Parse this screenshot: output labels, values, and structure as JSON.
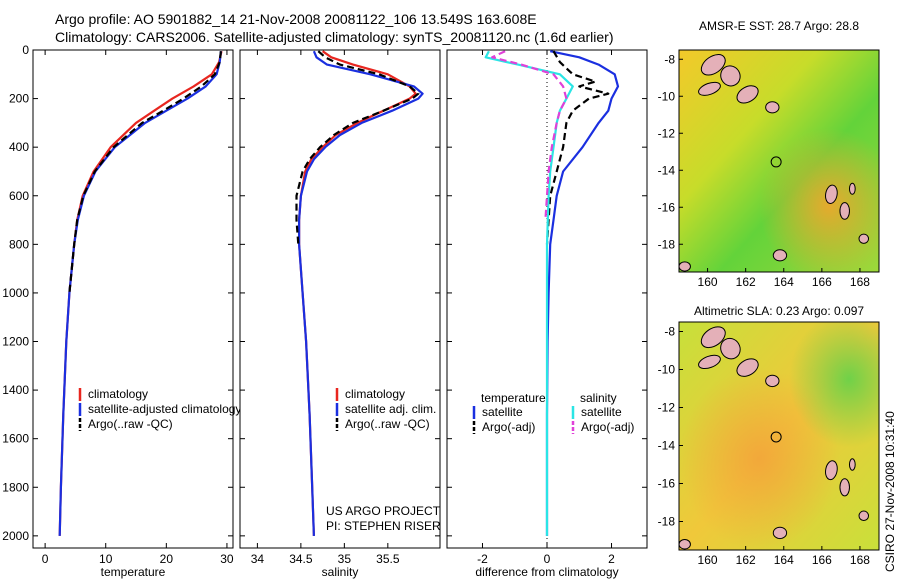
{
  "header": {
    "line1": "Argo profile: AO 5901882_14 21-Nov-2008 20081122_106 13.549S 163.608E",
    "line2": "Climatology: CARS2006. Satellite-adjusted climatology: synTS_20081120.nc (1.6d earlier)"
  },
  "footer_stamp": "CSIRO 27-Nov-2008 10:31:40",
  "colors": {
    "climatology": "#e8261f",
    "satellite": "#1a2fe0",
    "argo": "#000000",
    "satellite_salinity": "#2ae5e5",
    "argo_salinity": "#e040d8"
  },
  "chart_data": [
    {
      "type": "line",
      "panel": "temperature",
      "xlabel": "temperature",
      "ylabel": "",
      "xlim": [
        -2,
        31
      ],
      "ylim": [
        2050,
        0
      ],
      "x_ticks": [
        0,
        10,
        20,
        30
      ],
      "y_ticks": [
        0,
        200,
        400,
        600,
        800,
        1000,
        1200,
        1400,
        1600,
        1800,
        2000
      ],
      "legend": [
        "climatology",
        "satellite-adjusted climatology",
        "Argo(..raw -QC)"
      ],
      "legend_position": "lower-center",
      "series": [
        {
          "name": "climatology",
          "color_key": "climatology",
          "dash": "solid",
          "depth": [
            5,
            50,
            100,
            150,
            200,
            250,
            300,
            400,
            500,
            600,
            700,
            800,
            1000,
            1200,
            1500,
            1800,
            2000
          ],
          "values": [
            29.1,
            28.7,
            27.5,
            24.5,
            21.0,
            18.0,
            15.0,
            10.8,
            8.0,
            6.2,
            5.3,
            4.8,
            4.0,
            3.5,
            3.0,
            2.6,
            2.4
          ]
        },
        {
          "name": "satellite-adjusted climatology",
          "color_key": "satellite",
          "dash": "solid",
          "depth": [
            5,
            50,
            100,
            150,
            200,
            250,
            300,
            400,
            500,
            600,
            700,
            800,
            1000,
            1200,
            1500,
            1800,
            2000
          ],
          "values": [
            29.0,
            28.8,
            28.3,
            26.5,
            23.5,
            20.0,
            16.5,
            11.5,
            8.3,
            6.4,
            5.4,
            4.8,
            4.0,
            3.5,
            3.0,
            2.6,
            2.4
          ]
        },
        {
          "name": "Argo(..raw -QC)",
          "color_key": "argo",
          "dash": "dash",
          "depth": [
            5,
            50,
            100,
            150,
            200,
            250,
            300,
            400,
            500,
            600,
            700,
            800,
            1000
          ],
          "values": [
            29.0,
            28.8,
            28.0,
            25.8,
            22.8,
            19.5,
            16.0,
            11.3,
            8.2,
            6.3,
            5.3,
            4.8,
            4.0
          ]
        }
      ]
    },
    {
      "type": "line",
      "panel": "salinity",
      "xlabel": "salinity",
      "ylabel": "",
      "xlim": [
        33.8,
        36.1
      ],
      "ylim": [
        2050,
        0
      ],
      "x_ticks": [
        34,
        34.5,
        35,
        35.5
      ],
      "legend": [
        "climatology",
        "satellite adj. clim.",
        "Argo(..raw -QC)"
      ],
      "legend_position": "lower-right",
      "annotation_lines": [
        "US ARGO PROJECT",
        "PI: STEPHEN RISER"
      ],
      "series": [
        {
          "name": "climatology",
          "color_key": "climatology",
          "dash": "solid",
          "depth": [
            5,
            30,
            60,
            100,
            150,
            180,
            200,
            250,
            300,
            350,
            400,
            450,
            500,
            600,
            700,
            800,
            1000,
            1200,
            1500,
            1800,
            2000
          ],
          "values": [
            34.75,
            34.85,
            35.1,
            35.5,
            35.75,
            35.82,
            35.75,
            35.45,
            35.15,
            34.9,
            34.75,
            34.62,
            34.55,
            34.5,
            34.48,
            34.48,
            34.52,
            34.56,
            34.6,
            34.63,
            34.65
          ]
        },
        {
          "name": "satellite adj. clim.",
          "color_key": "satellite",
          "dash": "solid",
          "depth": [
            5,
            30,
            60,
            100,
            150,
            180,
            200,
            250,
            300,
            350,
            400,
            450,
            500,
            600,
            700,
            800,
            1000,
            1200,
            1500,
            1800,
            2000
          ],
          "values": [
            34.65,
            34.68,
            34.8,
            35.3,
            35.8,
            35.9,
            35.85,
            35.55,
            35.2,
            34.95,
            34.78,
            34.65,
            34.57,
            34.5,
            34.48,
            34.48,
            34.52,
            34.56,
            34.6,
            34.63,
            34.65
          ]
        },
        {
          "name": "Argo(..raw -QC)",
          "color_key": "argo",
          "dash": "dash",
          "depth": [
            5,
            30,
            60,
            100,
            150,
            180,
            200,
            250,
            300,
            350,
            400,
            450,
            500,
            600,
            700,
            800
          ],
          "values": [
            34.7,
            34.78,
            34.95,
            35.4,
            35.75,
            35.85,
            35.78,
            35.45,
            35.1,
            34.88,
            34.72,
            34.6,
            34.52,
            34.45,
            34.45,
            34.47
          ]
        }
      ]
    },
    {
      "type": "line",
      "panel": "difference",
      "xlabel": "difference from climatology",
      "ylabel": "",
      "xlim": [
        -3.1,
        3.1
      ],
      "ylim": [
        2050,
        0
      ],
      "x_ticks": [
        -2,
        0,
        2
      ],
      "legend": [
        "temperature",
        "satellite",
        "Argo(-adj)",
        "salinity",
        "satellite",
        "Argo(-adj)"
      ],
      "legend_position": "lower-center",
      "series": [
        {
          "name": "temperature satellite",
          "color_key": "satellite",
          "dash": "solid",
          "depth": [
            5,
            30,
            60,
            100,
            150,
            200,
            250,
            300,
            400,
            500,
            600,
            700,
            800,
            1000,
            1200,
            1500,
            1800,
            2000
          ],
          "values": [
            0.1,
            1.0,
            1.6,
            2.1,
            2.2,
            2.0,
            1.9,
            1.6,
            1.1,
            0.5,
            0.3,
            0.2,
            0.1,
            0.05,
            0.02,
            0.0,
            0.0,
            0.0
          ]
        },
        {
          "name": "temperature Argo(-adj)",
          "color_key": "argo",
          "dash": "dash",
          "depth": [
            5,
            50,
            100,
            130,
            150,
            180,
            200,
            250,
            300,
            400,
            500,
            600,
            700,
            800
          ],
          "values": [
            0.2,
            0.4,
            0.8,
            1.5,
            1.0,
            1.9,
            1.3,
            0.8,
            0.6,
            0.5,
            0.3,
            0.1,
            0.05,
            0.0
          ]
        },
        {
          "name": "salinity satellite",
          "color_key": "satellite_salinity",
          "dash": "solid",
          "depth": [
            5,
            30,
            60,
            100,
            150,
            200,
            250,
            300,
            400,
            500,
            600,
            800,
            1000,
            1200,
            1500,
            1800,
            2000
          ],
          "values": [
            -1.8,
            -1.9,
            -0.9,
            0.4,
            0.8,
            0.6,
            0.4,
            0.3,
            0.2,
            0.1,
            0.05,
            0.0,
            0.0,
            0.0,
            0.0,
            0.0,
            0.0
          ]
        },
        {
          "name": "salinity Argo(-adj)",
          "color_key": "argo_salinity",
          "dash": "dash",
          "depth": [
            5,
            30,
            60,
            100,
            150,
            200,
            250,
            300,
            400,
            500,
            600,
            700
          ],
          "values": [
            -1.3,
            -1.7,
            -0.8,
            0.2,
            0.5,
            0.6,
            0.4,
            0.3,
            0.15,
            0.05,
            0.0,
            -0.05
          ]
        }
      ]
    },
    {
      "type": "heatmap",
      "panel": "amsr-sst",
      "title": "AMSR-E SST: 28.7  Argo: 28.8",
      "x_ticks": [
        160,
        162,
        164,
        166,
        168
      ],
      "y_ticks": [
        -8,
        -10,
        -12,
        -14,
        -16,
        -18
      ],
      "xlim": [
        158.5,
        169
      ],
      "ylim": [
        -19.5,
        -7.5
      ],
      "marker": {
        "lon": 163.6,
        "lat": -13.55
      }
    },
    {
      "type": "heatmap",
      "panel": "altimetric-sla",
      "title": "Altimetric SLA: 0.23  Argo: 0.097",
      "x_ticks": [
        160,
        162,
        164,
        166,
        168
      ],
      "y_ticks": [
        -8,
        -10,
        -12,
        -14,
        -16,
        -18
      ],
      "xlim": [
        158.5,
        169
      ],
      "ylim": [
        -19.5,
        -7.5
      ],
      "marker": {
        "lon": 163.6,
        "lat": -13.55
      }
    }
  ]
}
